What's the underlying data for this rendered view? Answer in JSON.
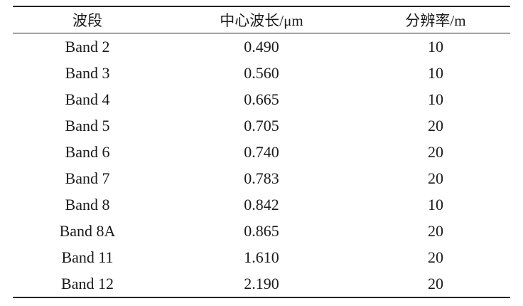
{
  "table": {
    "header": [
      "波段",
      "中心波长/μm",
      "分辨率/m"
    ],
    "rows": [
      [
        "Band 2",
        "0.490",
        "10"
      ],
      [
        "Band 3",
        "0.560",
        "10"
      ],
      [
        "Band 4",
        "0.665",
        "10"
      ],
      [
        "Band 5",
        "0.705",
        "20"
      ],
      [
        "Band 6",
        "0.740",
        "20"
      ],
      [
        "Band 7",
        "0.783",
        "20"
      ],
      [
        "Band 8",
        "0.842",
        "10"
      ],
      [
        "Band 8A",
        "0.865",
        "20"
      ],
      [
        "Band 11",
        "1.610",
        "20"
      ],
      [
        "Band 12",
        "2.190",
        "20"
      ]
    ]
  }
}
